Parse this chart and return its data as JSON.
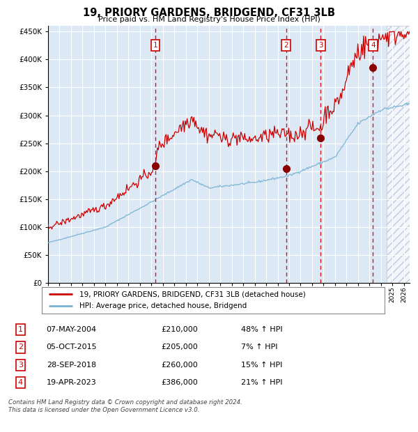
{
  "title": "19, PRIORY GARDENS, BRIDGEND, CF31 3LB",
  "subtitle": "Price paid vs. HM Land Registry's House Price Index (HPI)",
  "footer": "Contains HM Land Registry data © Crown copyright and database right 2024.\nThis data is licensed under the Open Government Licence v3.0.",
  "legend_line1": "19, PRIORY GARDENS, BRIDGEND, CF31 3LB (detached house)",
  "legend_line2": "HPI: Average price, detached house, Bridgend",
  "sales": [
    {
      "num": 1,
      "date": "07-MAY-2004",
      "price": 210000,
      "pct": "48%",
      "year": 2004.35
    },
    {
      "num": 2,
      "date": "05-OCT-2015",
      "price": 205000,
      "pct": "7%",
      "year": 2015.75
    },
    {
      "num": 3,
      "date": "28-SEP-2018",
      "price": 260000,
      "pct": "15%",
      "year": 2018.74
    },
    {
      "num": 4,
      "date": "19-APR-2023",
      "price": 386000,
      "pct": "21%",
      "year": 2023.3
    }
  ],
  "hpi_color": "#7ab3d4",
  "price_color": "#cc0000",
  "sale_dot_color": "#880000",
  "vline_color_sale": "#cc0000",
  "background_plot": "#dce9f5",
  "background_fig": "#ffffff",
  "grid_color": "#ffffff",
  "ylim": [
    0,
    460000
  ],
  "xlim_start": 1995.0,
  "xlim_end": 2026.5,
  "hatch_start": 2024.5
}
